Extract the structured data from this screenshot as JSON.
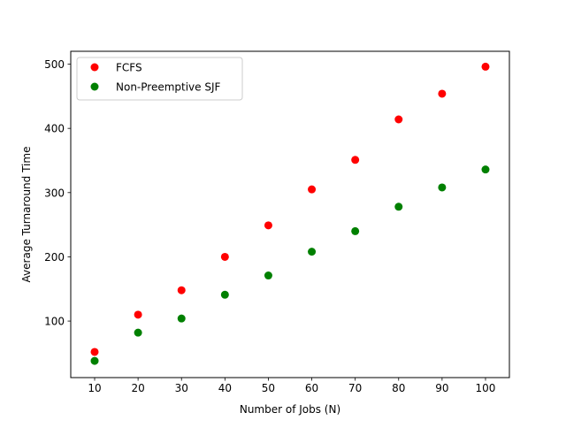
{
  "chart_data": {
    "type": "scatter",
    "title": "",
    "xlabel": "Number of Jobs (N)",
    "ylabel": "Average Turnaround Time",
    "x": [
      10,
      20,
      30,
      40,
      50,
      60,
      70,
      80,
      90,
      100
    ],
    "xticks": [
      10,
      20,
      30,
      40,
      50,
      60,
      70,
      80,
      90,
      100
    ],
    "yticks": [
      100,
      200,
      300,
      400,
      500
    ],
    "xlim": [
      4.5,
      105.5
    ],
    "ylim": [
      12,
      520
    ],
    "grid": false,
    "legend_position": "upper-left",
    "series": [
      {
        "name": "FCFS",
        "color": "#ff0000",
        "values": [
          52,
          110,
          148,
          200,
          249,
          305,
          351,
          414,
          454,
          496
        ]
      },
      {
        "name": "Non-Preemptive SJF",
        "color": "#008000",
        "values": [
          38,
          82,
          104,
          141,
          171,
          208,
          240,
          278,
          308,
          336
        ]
      }
    ]
  }
}
